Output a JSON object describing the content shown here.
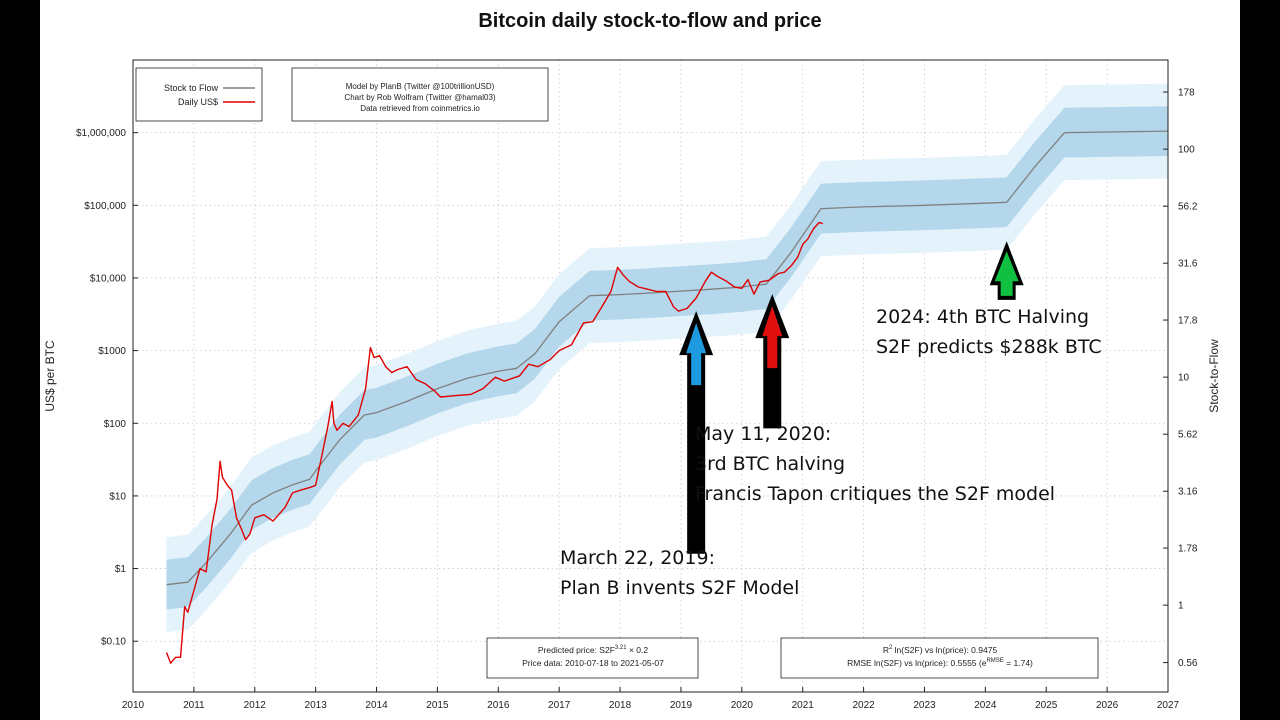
{
  "chart_data": {
    "type": "line",
    "title": "Bitcoin daily stock-to-flow and price",
    "ylabel": "US$ per BTC",
    "y2label": "Stock-to-Flow",
    "yscale": "log",
    "y2scale": "log",
    "xlim": [
      2010,
      2027
    ],
    "ylim": [
      0.02,
      10000000
    ],
    "y2lim": [
      0.416,
      246
    ],
    "x_ticks": [
      "2010",
      "2011",
      "2012",
      "2013",
      "2014",
      "2015",
      "2016",
      "2017",
      "2018",
      "2019",
      "2020",
      "2021",
      "2022",
      "2023",
      "2024",
      "2025",
      "2026",
      "2027"
    ],
    "y_ticks": [
      {
        "value": 0.1,
        "label": "$0.10"
      },
      {
        "value": 1,
        "label": "$1"
      },
      {
        "value": 10,
        "label": "$10"
      },
      {
        "value": 100,
        "label": "$100"
      },
      {
        "value": 1000,
        "label": "$1000"
      },
      {
        "value": 10000,
        "label": "$10,000"
      },
      {
        "value": 100000,
        "label": "$100,000"
      },
      {
        "value": 1000000,
        "label": "$1,000,000"
      }
    ],
    "y2_ticks": [
      {
        "value": 0.56,
        "label": "0.56"
      },
      {
        "value": 1,
        "label": "1"
      },
      {
        "value": 1.78,
        "label": "1.78"
      },
      {
        "value": 3.16,
        "label": "3.16"
      },
      {
        "value": 5.62,
        "label": "5.62"
      },
      {
        "value": 10,
        "label": "10"
      },
      {
        "value": 17.8,
        "label": "17.8"
      },
      {
        "value": 31.6,
        "label": "31.6"
      },
      {
        "value": 56.2,
        "label": "56.2"
      },
      {
        "value": 100,
        "label": "100"
      },
      {
        "value": 178,
        "label": "178"
      }
    ],
    "grid": true,
    "legend_position": "top-left",
    "series": [
      {
        "name": "Stock to Flow",
        "color": "#808080",
        "x": [
          2010.55,
          2010.9,
          2011.2,
          2011.6,
          2011.95,
          2012.3,
          2012.6,
          2012.9,
          2013.0,
          2013.4,
          2013.8,
          2014.0,
          2014.5,
          2015.0,
          2015.5,
          2016.0,
          2016.3,
          2016.6,
          2017.0,
          2017.5,
          2018.0,
          2018.5,
          2019.0,
          2019.5,
          2020.0,
          2020.2,
          2020.4,
          2020.8,
          2021.3,
          2022.0,
          2023.0,
          2024.0,
          2024.35,
          2024.8,
          2025.3,
          2026.0,
          2027.0
        ],
        "y": [
          0.6,
          0.65,
          1.2,
          3.0,
          7.5,
          11,
          14,
          17,
          22,
          60,
          130,
          140,
          200,
          300,
          420,
          520,
          570,
          900,
          2500,
          5700,
          5900,
          6200,
          6600,
          7000,
          7500,
          7900,
          8200,
          22000,
          90000,
          95000,
          100000,
          107000,
          110000,
          330000,
          1000000,
          1020000,
          1050000
        ]
      },
      {
        "name": "Daily US$",
        "color": "#e00000",
        "x": [
          2010.55,
          2010.62,
          2010.7,
          2010.78,
          2010.85,
          2010.9,
          2011.0,
          2011.1,
          2011.2,
          2011.3,
          2011.38,
          2011.43,
          2011.47,
          2011.55,
          2011.62,
          2011.7,
          2011.78,
          2011.85,
          2011.92,
          2012.0,
          2012.15,
          2012.3,
          2012.5,
          2012.62,
          2012.75,
          2012.9,
          2013.0,
          2013.1,
          2013.2,
          2013.27,
          2013.3,
          2013.35,
          2013.45,
          2013.55,
          2013.7,
          2013.82,
          2013.9,
          2013.96,
          2014.05,
          2014.15,
          2014.25,
          2014.35,
          2014.5,
          2014.65,
          2014.8,
          2014.95,
          2015.05,
          2015.3,
          2015.55,
          2015.75,
          2015.95,
          2016.1,
          2016.35,
          2016.5,
          2016.65,
          2016.85,
          2017.0,
          2017.1,
          2017.2,
          2017.4,
          2017.55,
          2017.7,
          2017.85,
          2017.96,
          2018.05,
          2018.15,
          2018.3,
          2018.45,
          2018.6,
          2018.75,
          2018.88,
          2018.96,
          2019.1,
          2019.25,
          2019.4,
          2019.5,
          2019.6,
          2019.75,
          2019.88,
          2020.0,
          2020.1,
          2020.2,
          2020.3,
          2020.45,
          2020.6,
          2020.7,
          2020.82,
          2020.92,
          2021.0,
          2021.08,
          2021.18,
          2021.27,
          2021.33
        ],
        "y": [
          0.07,
          0.05,
          0.06,
          0.06,
          0.3,
          0.25,
          0.5,
          1.0,
          0.9,
          4,
          9,
          30,
          18,
          14,
          12,
          5,
          3.5,
          2.5,
          3,
          5,
          5.5,
          4.5,
          7,
          11,
          12,
          13,
          14,
          35,
          90,
          200,
          100,
          80,
          100,
          90,
          130,
          300,
          1100,
          800,
          850,
          600,
          500,
          550,
          600,
          400,
          350,
          280,
          230,
          240,
          250,
          300,
          430,
          380,
          450,
          650,
          600,
          750,
          1000,
          1100,
          1200,
          2400,
          2500,
          4000,
          6500,
          14000,
          11000,
          9000,
          7500,
          7000,
          6500,
          6500,
          4000,
          3500,
          3800,
          5300,
          9000,
          12000,
          10500,
          9000,
          7500,
          7200,
          9500,
          6000,
          8800,
          9300,
          11500,
          12000,
          15000,
          19500,
          29000,
          34000,
          48000,
          58000,
          56000
        ]
      }
    ],
    "band": {
      "name": "",
      "x": [
        2010.55,
        2010.9,
        2011.2,
        2011.6,
        2011.95,
        2012.3,
        2012.6,
        2012.9,
        2013.0,
        2013.4,
        2013.8,
        2014.0,
        2014.5,
        2015.0,
        2015.5,
        2016.0,
        2016.3,
        2016.6,
        2017.0,
        2017.5,
        2018.0,
        2018.5,
        2019.0,
        2019.5,
        2020.0,
        2020.2,
        2020.4,
        2020.8,
        2021.3,
        2022.0,
        2023.0,
        2024.0,
        2024.35,
        2024.8,
        2025.3,
        2026.0,
        2027.0
      ],
      "inner_factor": 2.2,
      "outer_factor": 4.5
    },
    "legend": {
      "entries": [
        {
          "label": "Stock to Flow",
          "color": "#808080"
        },
        {
          "label": "Daily US$",
          "color": "#e00000"
        }
      ]
    },
    "credits": [
      "Model by PlanB (Twitter @100trillionUSD)",
      "Chart by Rob Wolfram (Twitter @hamal03)",
      "Data retrieved from coinmetrics.io"
    ],
    "formula_box": {
      "line1_prefix": "Predicted price: S2F",
      "line1_exp": "3.21",
      "line1_suffix": " × 0.2",
      "line2": "Price data: 2010-07-18 to 2021-05-07"
    },
    "stats_box": {
      "line1_r": "R",
      "line1_exp": "2",
      "line1_rest": " ln(S2F) vs ln(price): 0.9475",
      "line2_prefix": "RMSE ln(S2F) vs ln(price): 0.5555 (e",
      "line2_exp": "RMSE",
      "line2_suffix": " = 1.74)"
    },
    "arrows": [
      {
        "name": "blue-arrow",
        "fill": "#1e9be0",
        "x": 2019.25,
        "y_from": 1.6,
        "y_to": 3500
      },
      {
        "name": "red-arrow",
        "fill": "#e01010",
        "x": 2020.5,
        "y_from": 85,
        "y_to": 6000
      },
      {
        "name": "green-arrow",
        "fill": "#10c040",
        "x": 2024.35,
        "y_from": 5000,
        "y_to": 32000
      }
    ],
    "annotations": {
      "march": [
        "March 22, 2019:",
        "Plan B invents S2F Model"
      ],
      "may": [
        "May 11, 2020:",
        "3rd BTC halving",
        "Francis Tapon critiques the S2F model"
      ],
      "halving": [
        "2024: 4th BTC Halving",
        "S2F predicts $288k BTC"
      ]
    }
  }
}
